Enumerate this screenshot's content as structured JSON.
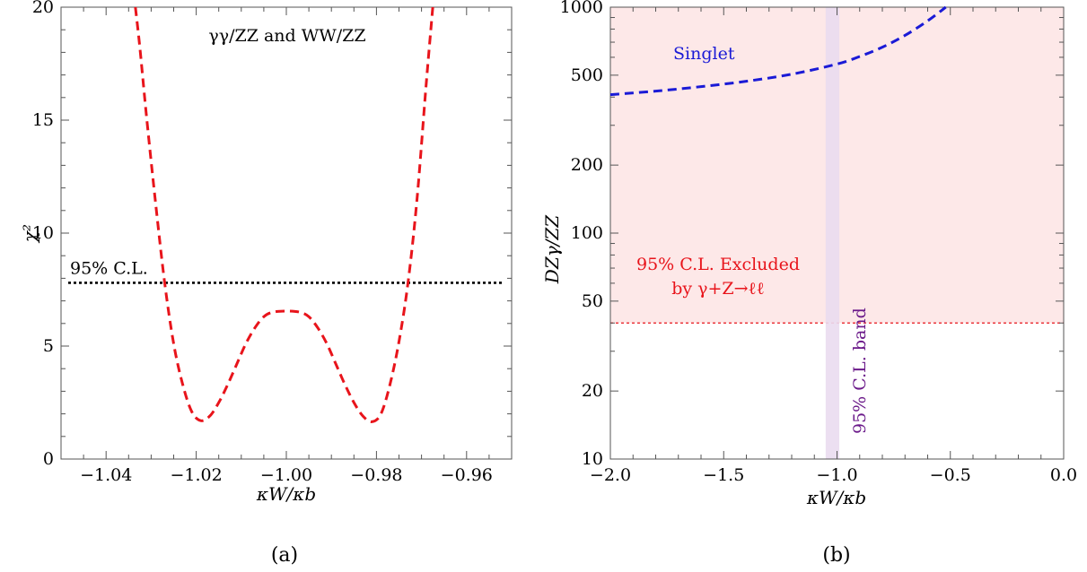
{
  "chart_data": [
    {
      "type": "line",
      "panel_label": "(a)",
      "annotation": "γγ/ZZ and WW/ZZ",
      "xlabel": "κW/κb",
      "ylabel": "χ²",
      "xlim": [
        -1.05,
        -0.95
      ],
      "ylim": [
        0,
        20
      ],
      "xticks": [
        -1.04,
        -1.02,
        -1.0,
        -0.98,
        -0.96
      ],
      "xtick_labels": [
        "−1.04",
        "−1.02",
        "−1.00",
        "−0.98",
        "−0.96"
      ],
      "yticks": [
        0,
        5,
        10,
        15,
        20
      ],
      "ytick_labels": [
        "0",
        "5",
        "10",
        "15",
        "20"
      ],
      "grid": false,
      "series": [
        {
          "style": "dashed",
          "color": "#e8141b",
          "x": [
            -1.0335,
            -1.0325,
            -1.031,
            -1.029,
            -1.027,
            -1.025,
            -1.023,
            -1.021,
            -1.019,
            -1.017,
            -1.015,
            -1.013,
            -1.011,
            -1.009,
            -1.007,
            -1.005,
            -1.003,
            -1.0,
            -0.997,
            -0.995,
            -0.993,
            -0.991,
            -0.989,
            -0.987,
            -0.985,
            -0.983,
            -0.981,
            -0.979,
            -0.977,
            -0.975,
            -0.973,
            -0.971,
            -0.969,
            -0.9675
          ],
          "y": [
            20.0,
            18.2,
            15.1,
            11.3,
            7.8,
            5.1,
            3.3,
            2.1,
            1.7,
            1.9,
            2.5,
            3.3,
            4.2,
            5.1,
            5.8,
            6.3,
            6.5,
            6.55,
            6.5,
            6.3,
            5.8,
            5.1,
            4.2,
            3.3,
            2.5,
            1.9,
            1.65,
            2.0,
            3.3,
            5.2,
            7.8,
            11.5,
            16.5,
            20.0
          ]
        }
      ],
      "reference_line": {
        "label": "95% C.L.",
        "y": 7.8,
        "style": "dotted",
        "color": "#000000"
      }
    },
    {
      "type": "line",
      "panel_label": "(b)",
      "xlabel": "κW/κb",
      "ylabel": "DZγ/ZZ",
      "xlim": [
        -2.0,
        0.0
      ],
      "ylim": [
        10,
        1000
      ],
      "yscale": "log",
      "xticks": [
        -2.0,
        -1.5,
        -1.0,
        -0.5,
        0.0
      ],
      "xtick_labels": [
        "−2.0",
        "−1.5",
        "−1.0",
        "−0.5",
        "0.0"
      ],
      "yticks": [
        10,
        20,
        50,
        100,
        200,
        500,
        1000
      ],
      "ytick_labels": [
        "10",
        "20",
        "50",
        "100",
        "200",
        "500",
        "1000"
      ],
      "grid": false,
      "series": [
        {
          "name": "Singlet",
          "style": "dashed",
          "color": "#1a1ad6",
          "x": [
            -2.0,
            -1.8,
            -1.6,
            -1.4,
            -1.2,
            -1.0,
            -0.9,
            -0.8,
            -0.7,
            -0.6,
            -0.52
          ],
          "y": [
            410,
            425,
            445,
            470,
            505,
            560,
            605,
            665,
            750,
            870,
            1000
          ]
        }
      ],
      "excluded_region": {
        "label_line1": "95% C.L. Excluded",
        "label_line2": "by γ+Z→ℓℓ",
        "ymin": 40,
        "ymax": 1000,
        "boundary_style": "dotted",
        "color": "#fde8e8",
        "text_color": "#e8141b"
      },
      "band": {
        "label": "95% C.L. band",
        "xmin": -1.05,
        "xmax": -0.99,
        "color": "#eadcf0",
        "text_color": "#6b1a8a"
      }
    }
  ],
  "colors": {
    "curve_a": "#e8141b",
    "singlet": "#1a1ad6",
    "band_text": "#6b1a8a"
  }
}
